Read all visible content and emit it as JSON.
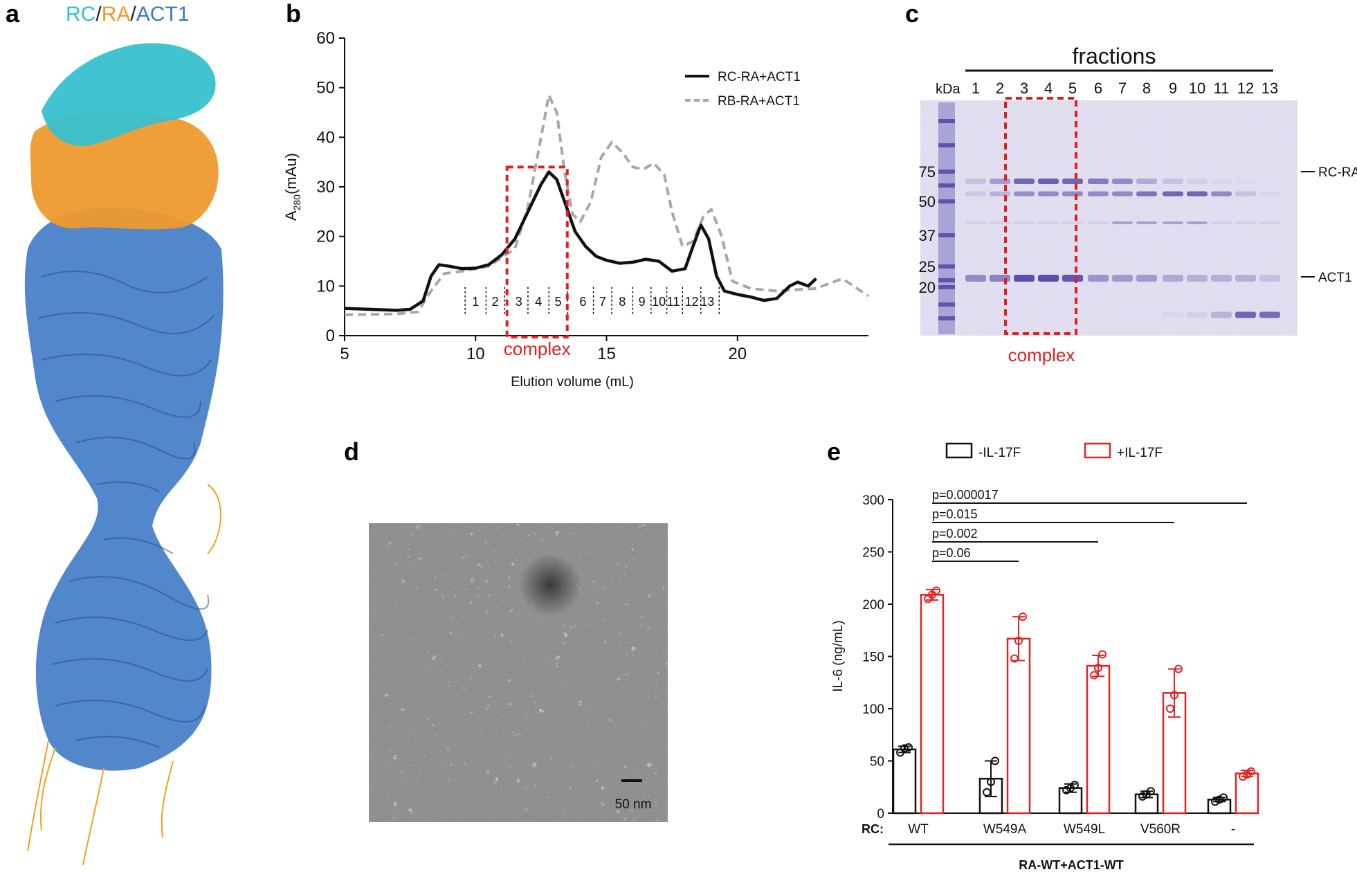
{
  "panels": {
    "a": {
      "letter": "a",
      "title_parts": [
        {
          "text": "RC",
          "color": "#33bfcf"
        },
        {
          "text": "/",
          "color": "#222222"
        },
        {
          "text": "RA",
          "color": "#f0962a"
        },
        {
          "text": "/",
          "color": "#222222"
        },
        {
          "text": "ACT1",
          "color": "#3a78c2"
        }
      ]
    },
    "b": {
      "letter": "b"
    },
    "c": {
      "letter": "c"
    },
    "d": {
      "letter": "d"
    },
    "e": {
      "letter": "e"
    }
  },
  "chart_data": [
    {
      "id": "b",
      "type": "line",
      "title": "",
      "xlabel": "Elution volume (mL)",
      "ylabel_main": "A",
      "ylabel_sub": "280",
      "ylabel_unit": "(mAu)",
      "xlim": [
        5,
        25
      ],
      "ylim": [
        0,
        60
      ],
      "xticks": [
        "5",
        "10",
        "15",
        "20"
      ],
      "xtick_values": [
        5,
        10,
        15,
        20
      ],
      "yticks": [
        "0",
        "10",
        "20",
        "30",
        "40",
        "50",
        "60"
      ],
      "ytick_values": [
        0,
        10,
        20,
        30,
        40,
        50,
        60
      ],
      "series": [
        {
          "name": "RC-RA+ACT1",
          "style": "solid",
          "color": "#111111",
          "x": [
            5,
            6,
            7,
            7.5,
            8,
            8.3,
            8.6,
            9,
            9.5,
            10,
            10.5,
            11,
            11.5,
            12,
            12.5,
            12.8,
            13.1,
            13.4,
            13.8,
            14.2,
            14.6,
            15,
            15.5,
            16,
            16.5,
            17,
            17.5,
            18,
            18.3,
            18.6,
            18.9,
            19.2,
            19.5,
            20,
            20.5,
            21,
            21.5,
            22,
            22.3,
            22.7,
            23
          ],
          "y": [
            5.5,
            5.3,
            5.1,
            5.3,
            7,
            12,
            14.3,
            14,
            13.5,
            13.6,
            14.3,
            16.3,
            19.5,
            25,
            30.5,
            33,
            31.5,
            27,
            21,
            18,
            16,
            15.2,
            14.6,
            14.8,
            15.4,
            15,
            13,
            13.5,
            18,
            22.3,
            19.5,
            12,
            9,
            8.3,
            7.8,
            7.1,
            7.5,
            10,
            10.8,
            10,
            11.5
          ]
        },
        {
          "name": "RB-RA+ACT1",
          "style": "dashed",
          "color": "#a8a8a8",
          "x": [
            5,
            6,
            7,
            7.8,
            8.3,
            8.8,
            9.5,
            10.5,
            11.5,
            12,
            12.5,
            12.8,
            13.1,
            13.4,
            13.7,
            14,
            14.4,
            14.8,
            15.2,
            15.6,
            16,
            16.4,
            16.8,
            17.2,
            17.5,
            17.9,
            18.3,
            18.7,
            19,
            19.4,
            19.8,
            20.5,
            21.5,
            22,
            23,
            24,
            25
          ],
          "y": [
            4.2,
            4.3,
            4.4,
            4.8,
            9,
            12.5,
            13,
            14,
            17.5,
            26,
            40,
            48.5,
            45,
            33,
            24.5,
            23,
            27,
            36,
            39,
            37,
            34,
            33.5,
            34.8,
            32.5,
            25,
            18,
            19,
            24,
            25.5,
            20,
            11,
            9.5,
            9,
            9.2,
            9.5,
            11.5,
            8
          ]
        }
      ],
      "fractions": [
        "1",
        "2",
        "3",
        "4",
        "5",
        "6",
        "7",
        "8",
        "9",
        "10",
        "11",
        "12",
        "13"
      ],
      "fraction_x_centers": [
        10,
        10.75,
        11.65,
        12.4,
        13.15,
        14.1,
        14.85,
        15.6,
        16.35,
        17.0,
        17.55,
        18.25,
        18.85
      ],
      "fraction_boundaries": [
        9.6,
        10.4,
        11.1,
        12.0,
        12.8,
        13.5,
        14.5,
        15.2,
        16.0,
        16.7,
        17.3,
        17.9,
        18.6,
        19.3
      ],
      "annotation": {
        "text": "complex",
        "x_range": [
          11.2,
          13.5
        ],
        "y_range": [
          0,
          34
        ]
      },
      "legend_position": "top-right"
    },
    {
      "id": "e",
      "type": "bar",
      "ylabel": "IL-6 (ng/mL)",
      "ylim": [
        0,
        300
      ],
      "yticks": [
        "0",
        "50",
        "100",
        "150",
        "200",
        "250",
        "300"
      ],
      "ytick_values": [
        0,
        50,
        100,
        150,
        200,
        250,
        300
      ],
      "categories_label": "RC:",
      "categories": [
        "WT",
        "W549A",
        "W549L",
        "V560R",
        "-"
      ],
      "group_label": "RA-WT+ACT1-WT",
      "series": [
        {
          "name": "-IL-17F",
          "color": "#111111",
          "values": [
            61,
            33,
            24,
            18,
            13
          ],
          "errors": [
            3,
            17,
            4,
            3,
            2
          ],
          "points": [
            [
              58,
              62,
              63
            ],
            [
              20,
              30,
              50
            ],
            [
              22,
              24,
              27
            ],
            [
              16,
              18,
              21
            ],
            [
              11,
              13,
              15
            ]
          ]
        },
        {
          "name": "+IL-17F",
          "color": "#e02424",
          "values": [
            209,
            167,
            141,
            115,
            38
          ],
          "errors": [
            5,
            21,
            10,
            23,
            3
          ],
          "points": [
            [
              205,
              209,
              213
            ],
            [
              148,
              165,
              188
            ],
            [
              132,
              139,
              152
            ],
            [
              100,
              113,
              138
            ],
            [
              35,
              37,
              40
            ]
          ]
        }
      ],
      "pvalues": [
        {
          "label": "p=0.000017",
          "from": 0,
          "to": 4
        },
        {
          "label": "p=0.015",
          "from": 0,
          "to": 3
        },
        {
          "label": "p=0.002",
          "from": 0,
          "to": 2
        },
        {
          "label": "p=0.06",
          "from": 0,
          "to": 1
        }
      ],
      "legend_position": "top"
    }
  ],
  "gel": {
    "header": "fractions",
    "kda_label": "kDa",
    "lanes": [
      "1",
      "2",
      "3",
      "4",
      "5",
      "6",
      "7",
      "8",
      "9",
      "10",
      "11",
      "12",
      "13"
    ],
    "markers": [
      "75",
      "50",
      "37",
      "25",
      "20"
    ],
    "band_labels": [
      "RC-RA",
      "ACT1"
    ],
    "annotation": "complex"
  },
  "em": {
    "scale_label": "50 nm"
  }
}
